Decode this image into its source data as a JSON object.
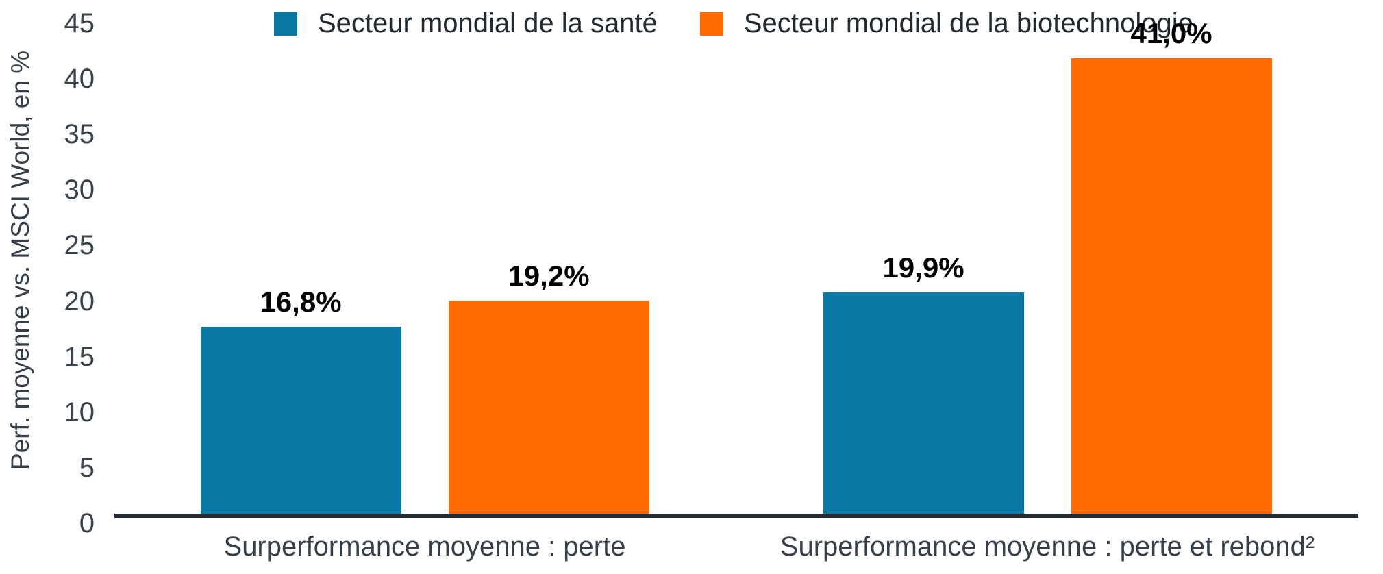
{
  "chart_data": {
    "type": "bar",
    "title": "",
    "ylabel": "Perf. moyenne vs. MSCI World, en %",
    "xlabel": "",
    "ylim": [
      0,
      45
    ],
    "yticks": [
      0,
      5,
      10,
      15,
      20,
      25,
      30,
      35,
      40,
      45
    ],
    "grid": "off",
    "legend_position": "top",
    "categories": [
      "Surperformance moyenne : perte",
      "Surperformance moyenne : perte et rebond²"
    ],
    "series": [
      {
        "name": "Secteur mondial de la santé",
        "color": "#0878a4",
        "values": [
          16.8,
          19.9
        ]
      },
      {
        "name": "Secteur mondial de la biotechnologie",
        "color": "#ff6b00",
        "values": [
          19.2,
          41.0
        ]
      }
    ],
    "value_labels": [
      [
        "16,8%",
        "19,9%"
      ],
      [
        "19,2%",
        "41,0%"
      ]
    ],
    "colors": {
      "axis_line": "#232d37",
      "tick_text": "#39434d",
      "category_text": "#343f4a",
      "value_text": "#000000"
    }
  }
}
